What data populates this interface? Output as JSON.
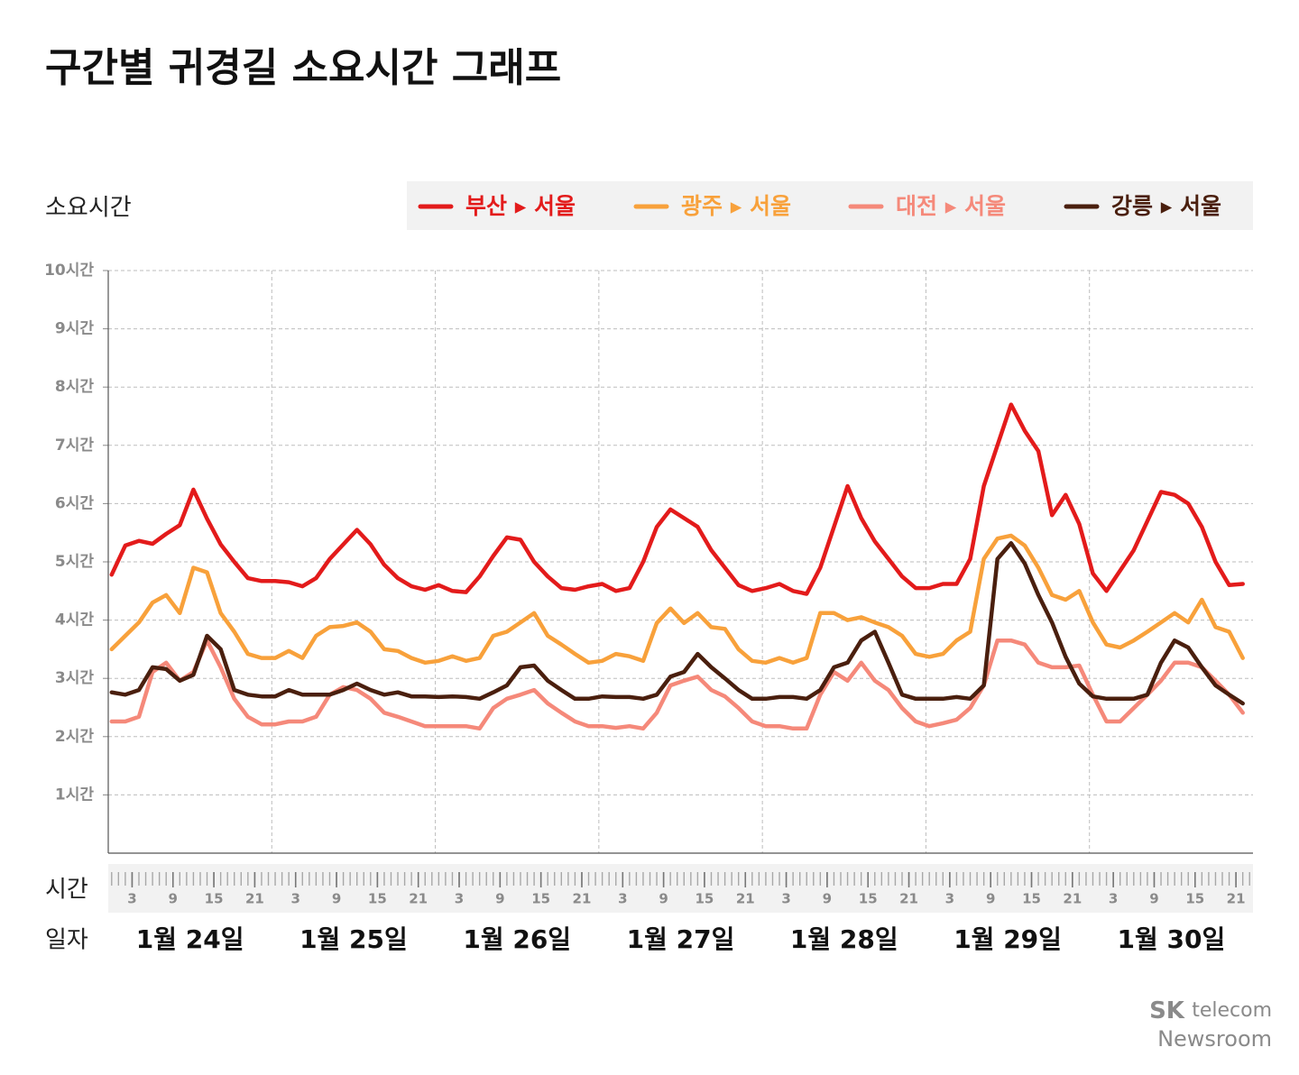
{
  "title": "구간별 귀경길 소요시간 그래프",
  "logo": {
    "brand": "SK",
    "product": "telecom",
    "sub": "Newsroom"
  },
  "chart_data": {
    "type": "line",
    "ylabel": "소요시간",
    "xlabel_hour": "시간",
    "xlabel_date": "일자",
    "dates": [
      "1월 24일",
      "1월 25일",
      "1월 26일",
      "1월 27일",
      "1월 28일",
      "1월 29일",
      "1월 30일"
    ],
    "x": [
      0,
      2,
      4,
      6,
      8,
      10,
      12,
      14,
      16,
      18,
      20,
      22,
      24,
      26,
      28,
      30,
      32,
      34,
      36,
      38,
      40,
      42,
      44,
      46,
      48,
      50,
      52,
      54,
      56,
      58,
      60,
      62,
      64,
      66,
      68,
      70,
      72,
      74,
      76,
      78,
      80,
      82,
      84,
      86,
      88,
      90,
      92,
      94,
      96,
      98,
      100,
      102,
      104,
      106,
      108,
      110,
      112,
      114,
      116,
      118,
      120,
      122,
      124,
      126,
      128,
      130,
      132,
      134,
      136,
      138,
      140,
      142,
      144,
      146,
      148,
      150,
      152,
      154,
      156,
      158,
      160,
      162,
      164,
      166
    ],
    "xlim": [
      -0.5,
      167.5
    ],
    "xticks": [
      {
        "value": 3,
        "label": "3"
      },
      {
        "value": 9,
        "label": "9"
      },
      {
        "value": 15,
        "label": "15"
      },
      {
        "value": 21,
        "label": "21"
      },
      {
        "value": 27,
        "label": "3"
      },
      {
        "value": 33,
        "label": "9"
      },
      {
        "value": 39,
        "label": "15"
      },
      {
        "value": 45,
        "label": "21"
      },
      {
        "value": 51,
        "label": "3"
      },
      {
        "value": 57,
        "label": "9"
      },
      {
        "value": 63,
        "label": "15"
      },
      {
        "value": 69,
        "label": "21"
      },
      {
        "value": 75,
        "label": "3"
      },
      {
        "value": 81,
        "label": "9"
      },
      {
        "value": 87,
        "label": "15"
      },
      {
        "value": 93,
        "label": "21"
      },
      {
        "value": 99,
        "label": "3"
      },
      {
        "value": 105,
        "label": "9"
      },
      {
        "value": 111,
        "label": "15"
      },
      {
        "value": 117,
        "label": "21"
      },
      {
        "value": 123,
        "label": "3"
      },
      {
        "value": 129,
        "label": "9"
      },
      {
        "value": 135,
        "label": "15"
      },
      {
        "value": 141,
        "label": "21"
      },
      {
        "value": 147,
        "label": "3"
      },
      {
        "value": 153,
        "label": "9"
      },
      {
        "value": 159,
        "label": "15"
      },
      {
        "value": 165,
        "label": "21"
      }
    ],
    "ylim": [
      0,
      10
    ],
    "yticks": [
      {
        "value": 1,
        "label": "1시간"
      },
      {
        "value": 2,
        "label": "2시간"
      },
      {
        "value": 3,
        "label": "3시간"
      },
      {
        "value": 4,
        "label": "4시간"
      },
      {
        "value": 5,
        "label": "5시간"
      },
      {
        "value": 6,
        "label": "6시간"
      },
      {
        "value": 7,
        "label": "7시간"
      },
      {
        "value": 8,
        "label": "8시간"
      },
      {
        "value": 9,
        "label": "9시간"
      },
      {
        "value": 10,
        "label": "10시간"
      }
    ],
    "grid": true,
    "series": [
      {
        "name": "부산 ▸ 서울",
        "color": "#e31b1b",
        "values": [
          4.78,
          5.28,
          5.36,
          5.31,
          5.48,
          5.63,
          6.24,
          5.74,
          5.3,
          5.0,
          4.72,
          4.67,
          4.67,
          4.65,
          4.58,
          4.72,
          5.05,
          5.3,
          5.55,
          5.3,
          4.95,
          4.72,
          4.58,
          4.52,
          4.6,
          4.5,
          4.48,
          4.75,
          5.1,
          5.42,
          5.38,
          5.0,
          4.75,
          4.55,
          4.52,
          4.58,
          4.62,
          4.5,
          4.55,
          5.0,
          5.6,
          5.9,
          5.75,
          5.6,
          5.2,
          4.9,
          4.6,
          4.5,
          4.55,
          4.62,
          4.5,
          4.45,
          4.9,
          5.6,
          6.3,
          5.75,
          5.35,
          5.05,
          4.75,
          4.55,
          4.55,
          4.62,
          4.62,
          5.05,
          6.3,
          7.0,
          7.7,
          7.25,
          6.9,
          5.8,
          6.15,
          5.65,
          4.8,
          4.5,
          4.85,
          5.2,
          5.7,
          6.2,
          6.15,
          6.0,
          5.6,
          5.0,
          4.6,
          4.62
        ]
      },
      {
        "name": "광주 ▸ 서울",
        "color": "#f8a13b",
        "values": [
          3.5,
          3.73,
          3.96,
          4.3,
          4.43,
          4.12,
          4.9,
          4.82,
          4.12,
          3.8,
          3.42,
          3.35,
          3.35,
          3.47,
          3.35,
          3.73,
          3.88,
          3.9,
          3.96,
          3.8,
          3.5,
          3.47,
          3.35,
          3.27,
          3.3,
          3.38,
          3.3,
          3.35,
          3.73,
          3.8,
          3.96,
          4.12,
          3.73,
          3.58,
          3.42,
          3.27,
          3.3,
          3.42,
          3.38,
          3.3,
          3.95,
          4.2,
          3.95,
          4.12,
          3.88,
          3.85,
          3.5,
          3.3,
          3.27,
          3.35,
          3.27,
          3.35,
          4.12,
          4.12,
          4.0,
          4.05,
          3.96,
          3.88,
          3.73,
          3.42,
          3.37,
          3.42,
          3.65,
          3.8,
          5.05,
          5.4,
          5.45,
          5.28,
          4.9,
          4.43,
          4.35,
          4.5,
          3.96,
          3.58,
          3.53,
          3.65,
          3.8,
          3.96,
          4.12,
          3.96,
          4.35,
          3.88,
          3.8,
          3.35
        ]
      },
      {
        "name": "대전 ▸ 서울",
        "color": "#f5897a",
        "values": [
          2.26,
          2.26,
          2.34,
          3.11,
          3.27,
          2.96,
          3.11,
          3.65,
          3.19,
          2.65,
          2.34,
          2.21,
          2.21,
          2.26,
          2.26,
          2.34,
          2.72,
          2.85,
          2.8,
          2.65,
          2.41,
          2.34,
          2.26,
          2.18,
          2.18,
          2.18,
          2.18,
          2.14,
          2.49,
          2.65,
          2.72,
          2.8,
          2.57,
          2.41,
          2.26,
          2.18,
          2.18,
          2.15,
          2.18,
          2.14,
          2.41,
          2.88,
          2.96,
          3.03,
          2.8,
          2.69,
          2.49,
          2.26,
          2.18,
          2.18,
          2.14,
          2.14,
          2.72,
          3.11,
          2.96,
          3.27,
          2.96,
          2.8,
          2.49,
          2.26,
          2.18,
          2.23,
          2.29,
          2.49,
          2.88,
          3.65,
          3.65,
          3.58,
          3.27,
          3.19,
          3.19,
          3.22,
          2.72,
          2.26,
          2.26,
          2.49,
          2.72,
          2.96,
          3.27,
          3.27,
          3.19,
          2.96,
          2.72,
          2.41
        ]
      },
      {
        "name": "강릉 ▸ 서울",
        "color": "#4a1f0e",
        "values": [
          2.76,
          2.72,
          2.8,
          3.19,
          3.16,
          2.96,
          3.06,
          3.73,
          3.5,
          2.8,
          2.72,
          2.69,
          2.69,
          2.8,
          2.72,
          2.72,
          2.72,
          2.8,
          2.91,
          2.8,
          2.72,
          2.76,
          2.69,
          2.69,
          2.68,
          2.69,
          2.68,
          2.65,
          2.76,
          2.88,
          3.19,
          3.22,
          2.96,
          2.8,
          2.65,
          2.65,
          2.69,
          2.68,
          2.68,
          2.65,
          2.72,
          3.03,
          3.11,
          3.42,
          3.19,
          3.0,
          2.8,
          2.65,
          2.65,
          2.68,
          2.68,
          2.65,
          2.8,
          3.19,
          3.27,
          3.65,
          3.8,
          3.27,
          2.72,
          2.65,
          2.65,
          2.65,
          2.68,
          2.65,
          2.88,
          5.05,
          5.32,
          4.97,
          4.43,
          3.96,
          3.37,
          2.91,
          2.69,
          2.65,
          2.65,
          2.65,
          2.72,
          3.27,
          3.65,
          3.53,
          3.19,
          2.88,
          2.72,
          2.57
        ]
      }
    ]
  }
}
